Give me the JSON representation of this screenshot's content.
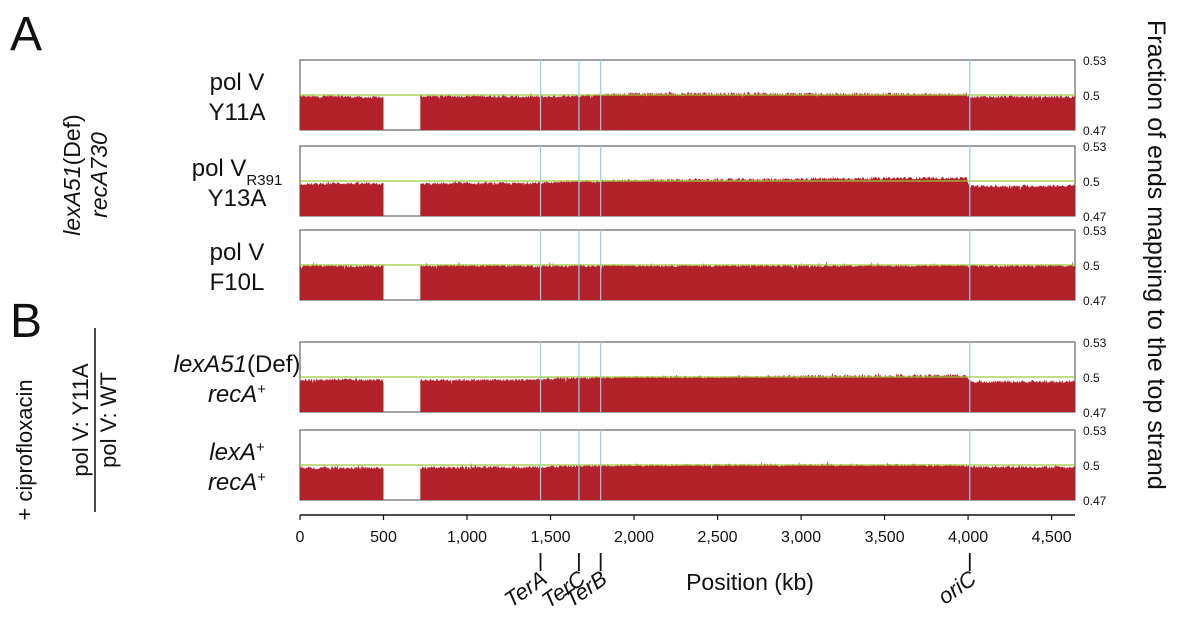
{
  "panels": {
    "A": "A",
    "B": "B"
  },
  "side_labels": {
    "A_line1_italic": "lexA51",
    "A_line1_rest": "(Def)",
    "A_line2": "recA730",
    "B_condition": "+ ciprofloxacin",
    "B_numerator": "pol V: Y11A",
    "B_denominator": "pol V: WT"
  },
  "right_axis_title": "Fraction of ends mapping to the top strand",
  "chart_data": {
    "type": "area",
    "xlabel": "Position (kb)",
    "xlim": [
      0,
      4640
    ],
    "xticks": [
      0,
      500,
      1000,
      1500,
      2000,
      2500,
      3000,
      3500,
      4000,
      4500
    ],
    "xtick_labels": [
      "0",
      "500",
      "1,000",
      "1,500",
      "2,000",
      "2,500",
      "3,000",
      "3,500",
      "4,000",
      "4,500"
    ],
    "ylim": [
      0.47,
      0.53
    ],
    "yticks": [
      0.47,
      0.5,
      0.53
    ],
    "ytick_labels": [
      "0.47",
      "0.5",
      "0.53"
    ],
    "reference_line": 0.5,
    "gap_kb": [
      500,
      720
    ],
    "vertical_markers": [
      {
        "label": "TerA",
        "kb": 1440
      },
      {
        "label": "TerC",
        "kb": 1670
      },
      {
        "label": "TerB",
        "kb": 1800
      },
      {
        "label": "oriC",
        "kb": 4010
      }
    ],
    "colors": {
      "bar": "#b3222a",
      "reference": "#9dc93b",
      "marker": "#8fd0ee"
    },
    "series": [
      {
        "label_lines": [
          "pol V",
          "Y11A"
        ],
        "values": [
          [
            0,
            0.499
          ],
          [
            100,
            0.4985
          ],
          [
            200,
            0.4995
          ],
          [
            300,
            0.4985
          ],
          [
            400,
            0.498
          ],
          [
            500,
            0.498
          ],
          [
            720,
            0.499
          ],
          [
            900,
            0.499
          ],
          [
            1100,
            0.499
          ],
          [
            1300,
            0.4985
          ],
          [
            1440,
            0.4985
          ],
          [
            1600,
            0.499
          ],
          [
            1800,
            0.5005
          ],
          [
            2000,
            0.501
          ],
          [
            2400,
            0.5012
          ],
          [
            2800,
            0.5012
          ],
          [
            3200,
            0.501
          ],
          [
            3600,
            0.5008
          ],
          [
            3990,
            0.5005
          ],
          [
            4010,
            0.4985
          ],
          [
            4300,
            0.4985
          ],
          [
            4640,
            0.4985
          ]
        ]
      },
      {
        "label_lines": [
          "pol V",
          "Y13A"
        ],
        "label_subscript": "R391",
        "values": [
          [
            0,
            0.4975
          ],
          [
            100,
            0.4975
          ],
          [
            200,
            0.498
          ],
          [
            300,
            0.498
          ],
          [
            400,
            0.4975
          ],
          [
            500,
            0.4975
          ],
          [
            720,
            0.4975
          ],
          [
            900,
            0.498
          ],
          [
            1100,
            0.498
          ],
          [
            1300,
            0.498
          ],
          [
            1440,
            0.4985
          ],
          [
            1600,
            0.4995
          ],
          [
            1800,
            0.5
          ],
          [
            2000,
            0.5005
          ],
          [
            2400,
            0.501
          ],
          [
            2800,
            0.5015
          ],
          [
            3200,
            0.502
          ],
          [
            3600,
            0.5025
          ],
          [
            3990,
            0.5025
          ],
          [
            4010,
            0.4955
          ],
          [
            4300,
            0.4955
          ],
          [
            4640,
            0.496
          ]
        ]
      },
      {
        "label_lines": [
          "pol V",
          "F10L"
        ],
        "values": [
          [
            0,
            0.4995
          ],
          [
            100,
            0.4995
          ],
          [
            200,
            0.4995
          ],
          [
            300,
            0.499
          ],
          [
            400,
            0.499
          ],
          [
            500,
            0.4995
          ],
          [
            720,
            0.4995
          ],
          [
            900,
            0.4995
          ],
          [
            1100,
            0.4995
          ],
          [
            1300,
            0.4995
          ],
          [
            1440,
            0.499
          ],
          [
            1600,
            0.4995
          ],
          [
            1800,
            0.4995
          ],
          [
            2000,
            0.4995
          ],
          [
            2400,
            0.4995
          ],
          [
            2800,
            0.4995
          ],
          [
            3200,
            0.4995
          ],
          [
            3600,
            0.4995
          ],
          [
            3990,
            0.4995
          ],
          [
            4010,
            0.4995
          ],
          [
            4300,
            0.4995
          ],
          [
            4640,
            0.4995
          ]
        ]
      },
      {
        "label_lines": [
          "lexA51(Def)",
          "recA+"
        ],
        "values": [
          [
            0,
            0.4975
          ],
          [
            100,
            0.4975
          ],
          [
            200,
            0.498
          ],
          [
            300,
            0.4975
          ],
          [
            400,
            0.4975
          ],
          [
            500,
            0.4975
          ],
          [
            720,
            0.4975
          ],
          [
            900,
            0.4975
          ],
          [
            1100,
            0.4975
          ],
          [
            1300,
            0.4975
          ],
          [
            1440,
            0.498
          ],
          [
            1600,
            0.499
          ],
          [
            1800,
            0.4995
          ],
          [
            2000,
            0.5
          ],
          [
            2400,
            0.5
          ],
          [
            2800,
            0.5005
          ],
          [
            3200,
            0.5008
          ],
          [
            3600,
            0.501
          ],
          [
            3990,
            0.5015
          ],
          [
            4010,
            0.496
          ],
          [
            4300,
            0.496
          ],
          [
            4640,
            0.496
          ]
        ]
      },
      {
        "label_lines": [
          "lexA+",
          "recA+"
        ],
        "values": [
          [
            0,
            0.4975
          ],
          [
            100,
            0.4975
          ],
          [
            200,
            0.498
          ],
          [
            300,
            0.4975
          ],
          [
            400,
            0.4975
          ],
          [
            500,
            0.4975
          ],
          [
            720,
            0.4975
          ],
          [
            900,
            0.498
          ],
          [
            1100,
            0.498
          ],
          [
            1300,
            0.498
          ],
          [
            1440,
            0.4985
          ],
          [
            1600,
            0.499
          ],
          [
            1800,
            0.4995
          ],
          [
            2000,
            0.5
          ],
          [
            2400,
            0.5
          ],
          [
            2800,
            0.5
          ],
          [
            3200,
            0.5
          ],
          [
            3600,
            0.5
          ],
          [
            3990,
            0.4995
          ],
          [
            4010,
            0.4985
          ],
          [
            4300,
            0.4985
          ],
          [
            4640,
            0.498
          ]
        ]
      }
    ]
  }
}
